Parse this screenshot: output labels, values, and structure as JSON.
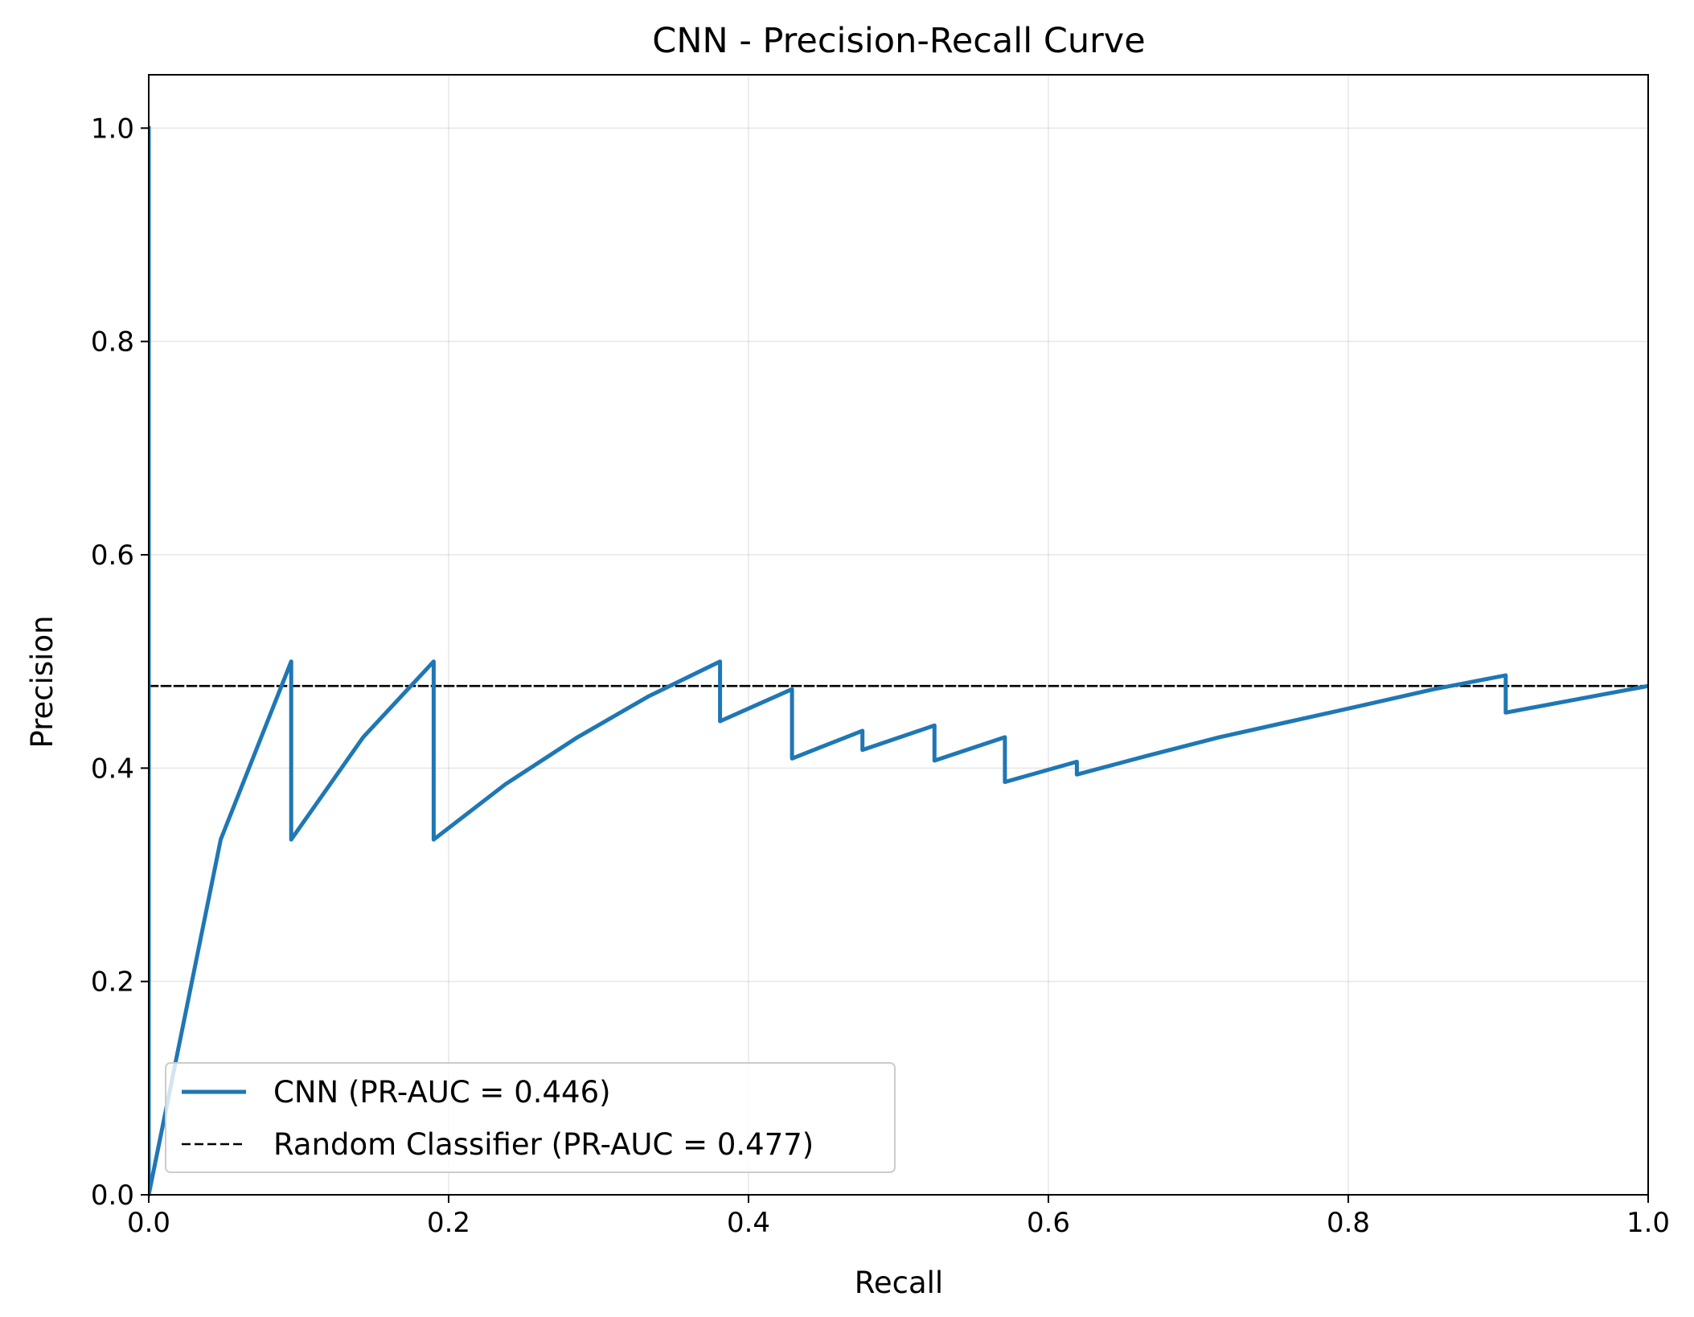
{
  "chart_data": {
    "type": "line",
    "title": "CNN - Precision-Recall Curve",
    "xlabel": "Recall",
    "ylabel": "Precision",
    "xlim": [
      0.0,
      1.0
    ],
    "ylim": [
      0.0,
      1.05
    ],
    "xticks": [
      "0.0",
      "0.2",
      "0.4",
      "0.6",
      "0.8",
      "1.0"
    ],
    "yticks": [
      "0.0",
      "0.2",
      "0.4",
      "0.6",
      "0.8",
      "1.0"
    ],
    "grid": true,
    "legend_position": "lower left",
    "series": [
      {
        "name": "CNN (PR-AUC = 0.446)",
        "color": "#1f77b4",
        "style": "solid",
        "x": [
          0.0,
          0.0,
          0.048,
          0.095,
          0.095,
          0.143,
          0.19,
          0.19,
          0.238,
          0.286,
          0.333,
          0.381,
          0.381,
          0.429,
          0.429,
          0.476,
          0.476,
          0.524,
          0.524,
          0.571,
          0.571,
          0.619,
          0.619,
          0.667,
          0.714,
          0.762,
          0.81,
          0.857,
          0.905,
          0.905,
          1.0
        ],
        "y": [
          1.0,
          0.0,
          0.333,
          0.5,
          0.333,
          0.429,
          0.5,
          0.333,
          0.385,
          0.429,
          0.467,
          0.5,
          0.444,
          0.474,
          0.409,
          0.435,
          0.417,
          0.44,
          0.407,
          0.429,
          0.387,
          0.406,
          0.394,
          0.412,
          0.429,
          0.444,
          0.459,
          0.474,
          0.487,
          0.452,
          0.477
        ]
      },
      {
        "name": "Random Classifier (PR-AUC = 0.477)",
        "color": "#000000",
        "style": "dashed",
        "x": [
          0.0,
          1.0
        ],
        "y": [
          0.477,
          0.477
        ]
      }
    ]
  }
}
